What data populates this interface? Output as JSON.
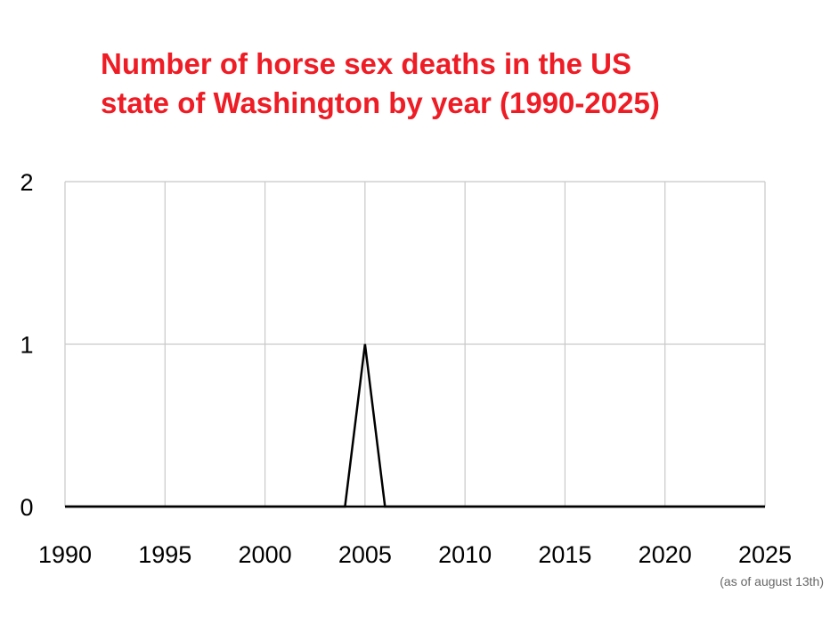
{
  "chart_data": {
    "type": "line",
    "title_lines": [
      "Number of horse sex deaths in the US",
      "state of Washington by year (1990-2025)"
    ],
    "xlabel": "",
    "ylabel": "",
    "xlim": [
      1990,
      2025
    ],
    "ylim": [
      0,
      2
    ],
    "x_ticks": [
      1990,
      1995,
      2000,
      2005,
      2010,
      2015,
      2020,
      2025
    ],
    "y_ticks": [
      0,
      1,
      2
    ],
    "grid": true,
    "note": "(as of august 13th)",
    "series": [
      {
        "color": "#000000",
        "x": [
          1990,
          1991,
          1992,
          1993,
          1994,
          1995,
          1996,
          1997,
          1998,
          1999,
          2000,
          2001,
          2002,
          2003,
          2004,
          2005,
          2006,
          2007,
          2008,
          2009,
          2010,
          2011,
          2012,
          2013,
          2014,
          2015,
          2016,
          2017,
          2018,
          2019,
          2020,
          2021,
          2022,
          2023,
          2024,
          2025
        ],
        "y": [
          0,
          0,
          0,
          0,
          0,
          0,
          0,
          0,
          0,
          0,
          0,
          0,
          0,
          0,
          0,
          1,
          0,
          0,
          0,
          0,
          0,
          0,
          0,
          0,
          0,
          0,
          0,
          0,
          0,
          0,
          0,
          0,
          0,
          0,
          0,
          0
        ]
      }
    ],
    "colors": {
      "title": "#ee1c25",
      "grid": "#c8c8c8",
      "line": "#000000",
      "note": "#666666"
    }
  }
}
